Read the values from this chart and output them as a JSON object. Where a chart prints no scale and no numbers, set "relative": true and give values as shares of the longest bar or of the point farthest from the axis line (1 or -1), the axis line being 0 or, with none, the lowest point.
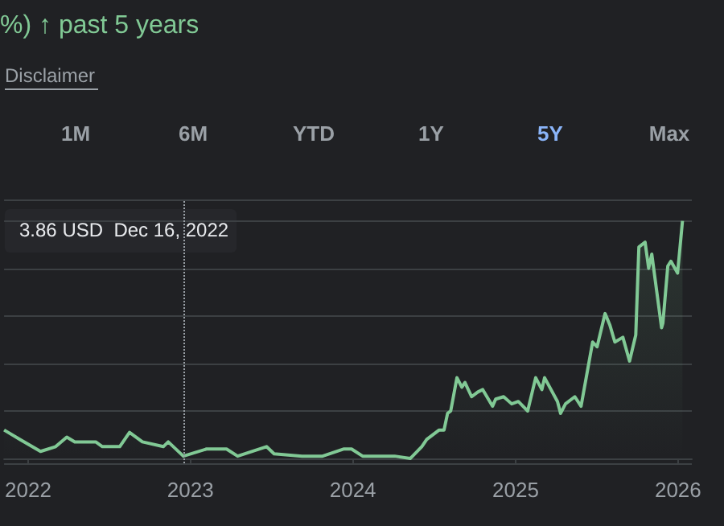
{
  "chart_data": {
    "type": "area",
    "title": "%) ↑ past 5 years",
    "relative": true,
    "color": "#81c995",
    "annotations": [
      "Disclaimer",
      "1M",
      "6M",
      "YTD",
      "1Y",
      "5Y",
      "Max",
      "3.86 USD  Dec 16, 2022"
    ],
    "x": [
      "2021-11-08",
      "2021-12-14",
      "2022-01-29",
      "2022-03-04",
      "2022-03-29",
      "2022-04-16",
      "2022-05-04",
      "2022-06-02",
      "2022-06-17",
      "2022-07-26",
      "2022-08-17",
      "2022-09-15",
      "2022-11-01",
      "2022-11-12",
      "2022-12-16",
      "2023-02-06",
      "2023-03-23",
      "2023-04-17",
      "2023-06-21",
      "2023-07-08",
      "2023-09-09",
      "2023-10-25",
      "2023-12-11",
      "2023-12-29",
      "2024-01-23",
      "2024-02-18",
      "2024-04-04",
      "2024-05-09",
      "2024-06-04",
      "2024-06-15",
      "2024-07-13",
      "2024-07-24",
      "2024-08-01",
      "2024-08-08",
      "2024-08-22",
      "2024-09-02",
      "2024-09-09",
      "2024-09-24",
      "2024-10-08",
      "2024-10-19",
      "2024-11-10",
      "2024-11-17",
      "2024-12-05",
      "2024-12-23",
      "2025-01-07",
      "2025-01-28",
      "2025-02-15",
      "2025-03-01",
      "2025-03-07",
      "2025-04-05",
      "2025-04-12",
      "2025-04-23",
      "2025-05-14",
      "2025-05-28",
      "2025-06-23",
      "2025-07-03",
      "2025-07-21",
      "2025-08-01",
      "2025-08-12",
      "2025-08-30",
      "2025-09-14",
      "2025-09-28",
      "2025-10-05",
      "2025-10-19",
      "2025-10-27",
      "2025-11-03",
      "2025-11-25",
      "2025-11-28",
      "2025-12-09",
      "2025-12-16",
      "2025-12-31",
      "2026-01-11"
    ],
    "values": [
      0.12,
      0.08,
      0.03,
      0.05,
      0.09,
      0.07,
      0.07,
      0.07,
      0.05,
      0.05,
      0.11,
      0.07,
      0.05,
      0.07,
      0.01,
      0.04,
      0.04,
      0.01,
      0.05,
      0.02,
      0.01,
      0.01,
      0.04,
      0.04,
      0.01,
      0.01,
      0.01,
      0,
      0.05,
      0.08,
      0.12,
      0.12,
      0.19,
      0.2,
      0.34,
      0.3,
      0.32,
      0.26,
      0.28,
      0.29,
      0.22,
      0.25,
      0.26,
      0.23,
      0.24,
      0.2,
      0.34,
      0.29,
      0.34,
      0.24,
      0.19,
      0.23,
      0.26,
      0.22,
      0.49,
      0.47,
      0.61,
      0.56,
      0.49,
      0.51,
      0.41,
      0.52,
      0.89,
      0.91,
      0.8,
      0.86,
      0.55,
      0.57,
      0.81,
      0.83,
      0.78,
      1
    ],
    "xlim": [
      "2021-11-08",
      "2026-02-01"
    ],
    "xticks": [
      "2022",
      "2023",
      "2024",
      "2025",
      "2026"
    ],
    "grid": "y",
    "ref_lines": [
      {
        "axis": "x",
        "value": "2022-12-16",
        "label": null,
        "color": "#9aa0a6",
        "line_style": "dotted"
      }
    ]
  }
}
